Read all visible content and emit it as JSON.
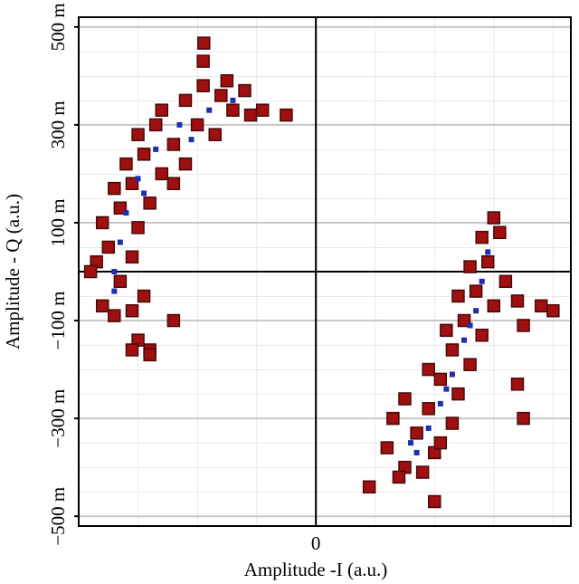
{
  "chart_data": {
    "type": "scatter",
    "xlabel": "Amplitude -I (a.u.)",
    "ylabel": "Amplitude - Q (a.u.)",
    "xlim": [
      -0.4,
      0.43
    ],
    "ylim": [
      -0.52,
      0.52
    ],
    "xticks": [
      0
    ],
    "yticks": [
      {
        "value": 0.5,
        "label": "500 m"
      },
      {
        "value": 0.3,
        "label": "300 m"
      },
      {
        "value": 0.1,
        "label": "100 m"
      },
      {
        "value": -0.1,
        "label": "−100 m"
      },
      {
        "value": -0.3,
        "label": "−300 m"
      },
      {
        "value": -0.5,
        "label": "−500 m"
      }
    ],
    "grid": true,
    "series": [
      {
        "color": "#a01010",
        "x": [
          -0.36,
          -0.34,
          -0.31,
          -0.33,
          -0.37,
          -0.35,
          -0.31,
          -0.29,
          -0.36,
          -0.33,
          -0.3,
          -0.34,
          -0.31,
          -0.28,
          -0.32,
          -0.29,
          -0.26,
          -0.3,
          -0.27,
          -0.24,
          -0.26,
          -0.22,
          -0.2,
          -0.19,
          -0.16,
          -0.14,
          -0.15,
          -0.12,
          -0.11,
          -0.19,
          -0.09,
          -0.3,
          -0.28,
          -0.24,
          -0.38,
          -0.22,
          -0.24,
          -0.17,
          -0.189,
          -0.05,
          -0.31,
          -0.28,
          0.12,
          0.15,
          0.18,
          0.13,
          0.17,
          0.2,
          0.15,
          0.19,
          0.23,
          0.21,
          0.24,
          0.19,
          0.23,
          0.26,
          0.22,
          0.25,
          0.28,
          0.24,
          0.27,
          0.3,
          0.26,
          0.29,
          0.32,
          0.28,
          0.31,
          0.3,
          0.34,
          0.38,
          0.4,
          0.35,
          0.09,
          0.2,
          0.35,
          0.34,
          0.14,
          0.21
        ],
        "y": [
          -0.07,
          -0.09,
          -0.08,
          -0.02,
          0.02,
          0.05,
          0.03,
          -0.05,
          0.1,
          0.13,
          0.09,
          0.17,
          0.18,
          0.14,
          0.22,
          0.24,
          0.2,
          0.28,
          0.3,
          0.26,
          0.33,
          0.35,
          0.3,
          0.38,
          0.36,
          0.33,
          0.39,
          0.37,
          0.32,
          0.43,
          0.33,
          -0.14,
          -0.16,
          -0.1,
          0.0,
          0.22,
          0.18,
          0.28,
          0.467,
          0.32,
          -0.16,
          -0.17,
          -0.36,
          -0.4,
          -0.41,
          -0.3,
          -0.33,
          -0.37,
          -0.26,
          -0.28,
          -0.31,
          -0.22,
          -0.25,
          -0.2,
          -0.16,
          -0.19,
          -0.12,
          -0.1,
          -0.13,
          -0.05,
          -0.04,
          -0.07,
          0.01,
          0.02,
          -0.02,
          0.07,
          0.08,
          0.11,
          -0.06,
          -0.07,
          -0.08,
          -0.11,
          -0.44,
          -0.47,
          -0.3,
          -0.23,
          -0.42,
          -0.35
        ]
      },
      {
        "color": "#1e2fb0",
        "x": [
          -0.34,
          -0.33,
          -0.32,
          -0.3,
          -0.27,
          -0.23,
          -0.18,
          -0.14,
          -0.34,
          -0.29,
          -0.21,
          0.17,
          0.19,
          0.21,
          0.23,
          0.25,
          0.27,
          0.28,
          0.29,
          0.16,
          0.22,
          0.26
        ],
        "y": [
          0.0,
          0.06,
          0.12,
          0.19,
          0.25,
          0.3,
          0.33,
          0.35,
          -0.04,
          0.16,
          0.27,
          -0.37,
          -0.32,
          -0.27,
          -0.21,
          -0.14,
          -0.08,
          -0.02,
          0.04,
          -0.35,
          -0.24,
          -0.11
        ]
      }
    ]
  }
}
